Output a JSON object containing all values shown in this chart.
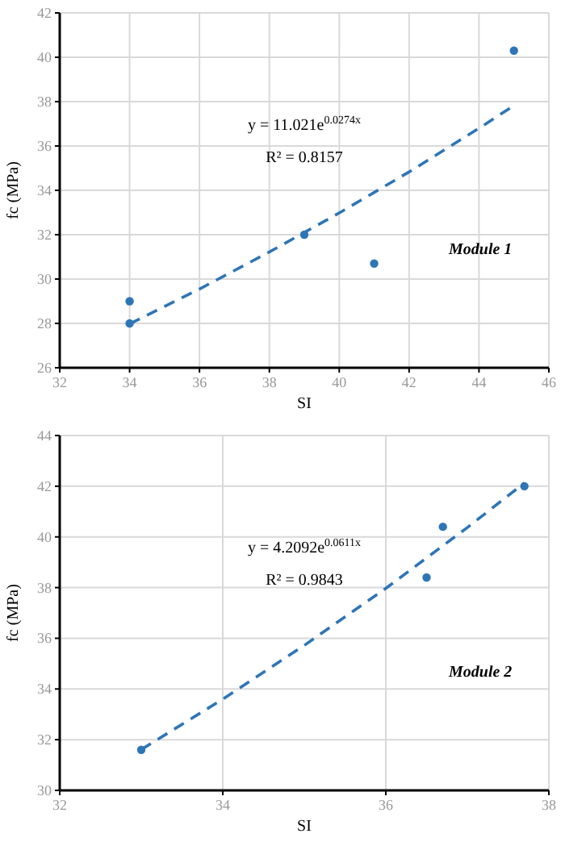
{
  "chart_data": [
    {
      "type": "scatter",
      "xlabel": "SI",
      "ylabel": "fc (MPa)",
      "xlim": [
        32,
        46
      ],
      "xticks": [
        32,
        34,
        36,
        38,
        40,
        42,
        44,
        46
      ],
      "ylim": [
        26,
        42
      ],
      "yticks": [
        26,
        28,
        30,
        32,
        34,
        36,
        38,
        40,
        42
      ],
      "grid": true,
      "annotations": [
        "y = 11.021e$^{0.0274x}$",
        "R² = 0.8157",
        "Module 1"
      ],
      "series": [
        {
          "color": "#2e75b6",
          "marker": "circle",
          "x": [
            34,
            34,
            39,
            41,
            45
          ],
          "values": [
            29,
            28,
            32,
            30.7,
            40.3
          ]
        },
        {
          "type": "line",
          "color": "#2e75b6",
          "marker": "none",
          "line_style": "dashed",
          "x": [
            34,
            36,
            38,
            40,
            42,
            44,
            45
          ],
          "values": [
            27.98,
            29.55,
            31.22,
            32.98,
            34.83,
            36.8,
            37.82
          ]
        }
      ]
    },
    {
      "type": "scatter",
      "xlabel": "SI",
      "ylabel": "fc (MPa)",
      "xlim": [
        32,
        38
      ],
      "xticks": [
        32,
        34,
        36,
        38
      ],
      "ylim": [
        30,
        44
      ],
      "yticks": [
        30,
        32,
        34,
        36,
        38,
        40,
        42,
        44
      ],
      "grid": true,
      "annotations": [
        "y = 4.2092e$^{0.0611x}$",
        "R² = 0.9843",
        "Module 2"
      ],
      "series": [
        {
          "color": "#2e75b6",
          "marker": "circle",
          "x": [
            33,
            36.5,
            36.7,
            37.7
          ],
          "values": [
            31.6,
            38.4,
            40.4,
            42
          ]
        },
        {
          "type": "line",
          "color": "#2e75b6",
          "marker": "none",
          "line_style": "dashed",
          "x": [
            33,
            34,
            35,
            36,
            37,
            37.7
          ],
          "values": [
            31.61,
            33.6,
            35.72,
            37.97,
            40.37,
            42.13
          ]
        }
      ]
    }
  ]
}
